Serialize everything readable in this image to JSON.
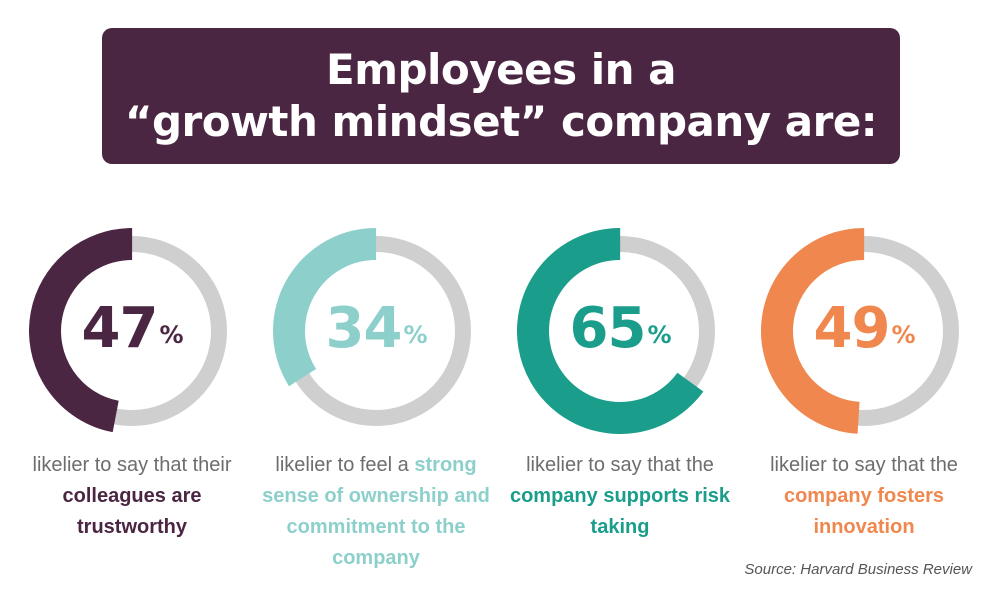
{
  "header": {
    "title_line1": "Employees in a",
    "title_line2": "“growth mindset” company are:"
  },
  "chart_data": {
    "type": "pie",
    "title": "Employees in a “growth mindset” company are:",
    "track_color": "#cfcfcf",
    "items": [
      {
        "value": 47,
        "unit": "%",
        "color": "#4b2642",
        "text_before": "likelier to say that their ",
        "highlight": "colleagues are trustworthy",
        "text_after": ""
      },
      {
        "value": 34,
        "unit": "%",
        "color": "#8dd0cb",
        "text_before": "likelier to feel a ",
        "highlight": "strong sense of ownership and commitment to the company",
        "text_after": ""
      },
      {
        "value": 65,
        "unit": "%",
        "color": "#1a9e8b",
        "text_before": "likelier to say that the ",
        "highlight": "company supports risk taking",
        "text_after": ""
      },
      {
        "value": 49,
        "unit": "%",
        "color": "#f0874e",
        "text_before": "likelier to say that the ",
        "highlight": "company fosters innovation",
        "text_after": ""
      }
    ]
  },
  "footer": {
    "source": "Source: Harvard Business Review"
  }
}
